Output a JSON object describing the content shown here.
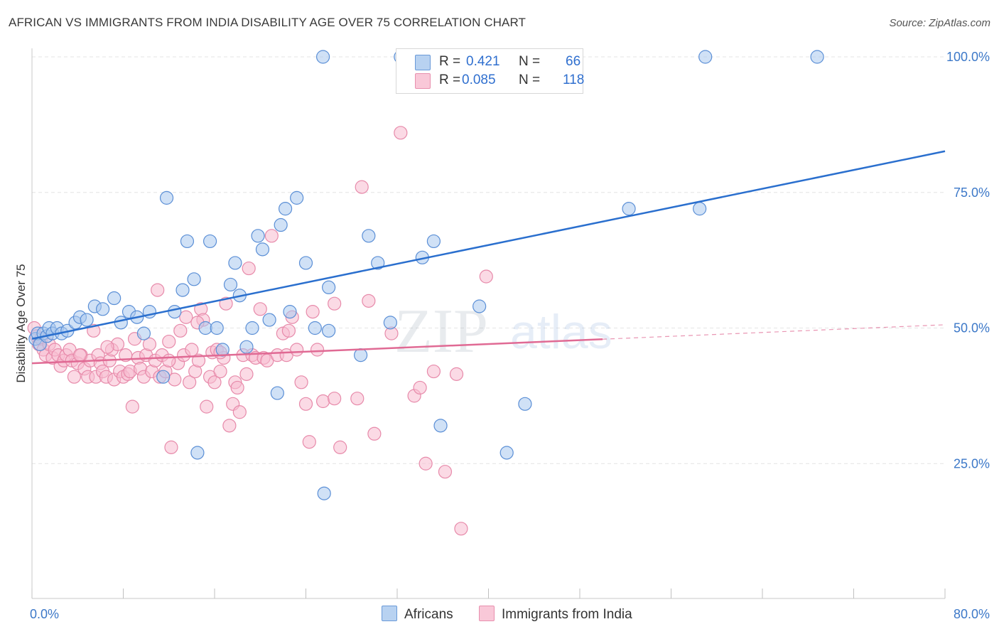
{
  "title": "AFRICAN VS IMMIGRANTS FROM INDIA DISABILITY AGE OVER 75 CORRELATION CHART",
  "source": "Source: ZipAtlas.com",
  "watermark": {
    "part1": "ZIP",
    "part2": "atlas"
  },
  "legend": {
    "rows": [
      {
        "r_label": "R =",
        "r_value": "0.421",
        "n_label": "N =",
        "n_value": "66"
      },
      {
        "r_label": "R =",
        "r_value": "0.085",
        "n_label": "N =",
        "n_value": "118"
      }
    ]
  },
  "bottom_legend": [
    "Africans",
    "Immigrants from India"
  ],
  "colors": {
    "africans_fill": "#a9c8ee",
    "africans_stroke": "#5b8fd6",
    "africans_line": "#2a6fce",
    "india_fill": "#f7bcd0",
    "india_stroke": "#e78aaa",
    "india_line": "#e06a94",
    "axis_text": "#3c78c8",
    "grid": "#e4e4e4"
  },
  "chart_data": {
    "type": "scatter",
    "title": "AFRICAN VS IMMIGRANTS FROM INDIA DISABILITY AGE OVER 75 CORRELATION CHART",
    "xlabel": "",
    "ylabel": "Disability Age Over 75",
    "xlim": [
      0,
      80
    ],
    "ylim": [
      0,
      102
    ],
    "x_tick_labels": [
      "0.0%",
      "80.0%"
    ],
    "y_ticks": [
      25,
      50,
      75,
      100
    ],
    "y_tick_labels": [
      "25.0%",
      "50.0%",
      "75.0%",
      "100.0%"
    ],
    "grid": true,
    "legend_position": "top-center",
    "series": [
      {
        "name": "Africans",
        "R": 0.421,
        "N": 66,
        "trend": {
          "x": [
            0,
            80
          ],
          "y": [
            48.0,
            82.6
          ],
          "dashed_from": null
        },
        "points": [
          [
            0.3,
            48
          ],
          [
            0.5,
            49
          ],
          [
            0.7,
            47
          ],
          [
            1.0,
            49
          ],
          [
            1.3,
            48.5
          ],
          [
            1.5,
            50
          ],
          [
            1.8,
            49
          ],
          [
            2.2,
            50
          ],
          [
            2.6,
            49
          ],
          [
            3.1,
            49.5
          ],
          [
            3.8,
            51
          ],
          [
            4.2,
            52
          ],
          [
            4.8,
            51.5
          ],
          [
            5.5,
            54
          ],
          [
            6.2,
            53.5
          ],
          [
            7.2,
            55.5
          ],
          [
            7.8,
            51
          ],
          [
            8.5,
            53
          ],
          [
            9.2,
            52
          ],
          [
            9.8,
            49
          ],
          [
            10.3,
            53
          ],
          [
            11.5,
            41
          ],
          [
            11.8,
            74
          ],
          [
            12.5,
            53
          ],
          [
            13.2,
            57
          ],
          [
            13.6,
            66
          ],
          [
            14.2,
            59
          ],
          [
            14.5,
            27
          ],
          [
            15.2,
            50
          ],
          [
            15.6,
            66
          ],
          [
            16.2,
            50
          ],
          [
            16.7,
            46
          ],
          [
            17.4,
            58
          ],
          [
            17.8,
            62
          ],
          [
            18.2,
            56
          ],
          [
            18.8,
            46.5
          ],
          [
            19.3,
            50
          ],
          [
            19.8,
            67
          ],
          [
            20.2,
            64.5
          ],
          [
            20.8,
            51.5
          ],
          [
            21.5,
            38
          ],
          [
            21.8,
            69
          ],
          [
            22.2,
            72
          ],
          [
            22.6,
            53
          ],
          [
            23.2,
            74
          ],
          [
            24.0,
            62
          ],
          [
            24.8,
            50
          ],
          [
            25.5,
            100
          ],
          [
            25.6,
            19.5
          ],
          [
            26.0,
            57.5
          ],
          [
            26.0,
            49.5
          ],
          [
            28.8,
            45
          ],
          [
            29.5,
            67
          ],
          [
            30.3,
            62
          ],
          [
            31.4,
            51
          ],
          [
            32.3,
            100
          ],
          [
            34.2,
            63
          ],
          [
            35.2,
            66
          ],
          [
            35.8,
            32
          ],
          [
            39.2,
            54
          ],
          [
            41.6,
            27
          ],
          [
            43.2,
            36
          ],
          [
            52.3,
            72
          ],
          [
            58.5,
            72
          ],
          [
            59.0,
            100
          ],
          [
            68.8,
            100
          ]
        ]
      },
      {
        "name": "Immigrants from India",
        "R": 0.085,
        "N": 118,
        "trend": {
          "x": [
            0,
            80
          ],
          "y": [
            43.5,
            50.6
          ],
          "dashed_from": 50
        },
        "points": [
          [
            0.2,
            50
          ],
          [
            0.4,
            48.5
          ],
          [
            0.6,
            47
          ],
          [
            0.8,
            48
          ],
          [
            1.0,
            46
          ],
          [
            1.2,
            45
          ],
          [
            1.5,
            47
          ],
          [
            1.8,
            44.5
          ],
          [
            2.0,
            46
          ],
          [
            2.3,
            45
          ],
          [
            2.5,
            43
          ],
          [
            2.8,
            44
          ],
          [
            3.0,
            45
          ],
          [
            3.3,
            46
          ],
          [
            3.5,
            44
          ],
          [
            3.7,
            41
          ],
          [
            4.0,
            43.5
          ],
          [
            4.3,
            45
          ],
          [
            4.6,
            42.5
          ],
          [
            4.9,
            41
          ],
          [
            5.1,
            44
          ],
          [
            5.4,
            49.5
          ],
          [
            5.6,
            41
          ],
          [
            5.8,
            45
          ],
          [
            6.0,
            43.5
          ],
          [
            6.2,
            42
          ],
          [
            6.5,
            41
          ],
          [
            6.8,
            44
          ],
          [
            7.0,
            46
          ],
          [
            7.2,
            40.5
          ],
          [
            7.5,
            47
          ],
          [
            7.7,
            42
          ],
          [
            8.0,
            41
          ],
          [
            8.2,
            45
          ],
          [
            8.4,
            41.5
          ],
          [
            8.6,
            42
          ],
          [
            8.8,
            35.5
          ],
          [
            9.0,
            48
          ],
          [
            9.3,
            44.5
          ],
          [
            9.5,
            42.5
          ],
          [
            9.8,
            41
          ],
          [
            10.0,
            45
          ],
          [
            10.3,
            47
          ],
          [
            10.5,
            42
          ],
          [
            10.8,
            44
          ],
          [
            11.0,
            57
          ],
          [
            11.2,
            41
          ],
          [
            11.4,
            45
          ],
          [
            11.7,
            42
          ],
          [
            12.0,
            47.5
          ],
          [
            12.2,
            28
          ],
          [
            12.5,
            40.5
          ],
          [
            12.8,
            43.5
          ],
          [
            13.0,
            49.5
          ],
          [
            13.3,
            45
          ],
          [
            13.5,
            52
          ],
          [
            13.8,
            40
          ],
          [
            14.0,
            46
          ],
          [
            14.3,
            42
          ],
          [
            14.6,
            44
          ],
          [
            14.8,
            53.5
          ],
          [
            15.0,
            51.5
          ],
          [
            15.3,
            35.5
          ],
          [
            15.6,
            41
          ],
          [
            15.8,
            45.5
          ],
          [
            16.0,
            40
          ],
          [
            16.2,
            46
          ],
          [
            16.5,
            42
          ],
          [
            16.8,
            44.5
          ],
          [
            17.0,
            54.5
          ],
          [
            17.3,
            32
          ],
          [
            17.6,
            36
          ],
          [
            17.8,
            40
          ],
          [
            18.0,
            39
          ],
          [
            18.2,
            34.5
          ],
          [
            18.5,
            45
          ],
          [
            18.8,
            41.5
          ],
          [
            19.0,
            61
          ],
          [
            19.3,
            45
          ],
          [
            19.6,
            44.5
          ],
          [
            20.0,
            53.5
          ],
          [
            20.3,
            44.5
          ],
          [
            20.6,
            44
          ],
          [
            21.0,
            67
          ],
          [
            21.5,
            45
          ],
          [
            22.0,
            49
          ],
          [
            22.3,
            45
          ],
          [
            22.8,
            52
          ],
          [
            23.2,
            46
          ],
          [
            23.6,
            40
          ],
          [
            24.0,
            36
          ],
          [
            24.3,
            29
          ],
          [
            24.6,
            53
          ],
          [
            25.0,
            46
          ],
          [
            25.5,
            36.5
          ],
          [
            26.5,
            37
          ],
          [
            27.0,
            28
          ],
          [
            28.5,
            37
          ],
          [
            28.9,
            76
          ],
          [
            29.5,
            55
          ],
          [
            30.0,
            30.5
          ],
          [
            32.3,
            86
          ],
          [
            33.5,
            37.5
          ],
          [
            34.0,
            39
          ],
          [
            34.5,
            25
          ],
          [
            35.2,
            42
          ],
          [
            36.2,
            23.5
          ],
          [
            37.2,
            41.5
          ],
          [
            37.6,
            13
          ],
          [
            39.8,
            59.5
          ],
          [
            6.6,
            46.5
          ],
          [
            12.0,
            44
          ],
          [
            16.5,
            45.5
          ],
          [
            26.5,
            54.5
          ],
          [
            31.5,
            49
          ],
          [
            22.5,
            49.5
          ],
          [
            4.2,
            45
          ],
          [
            14.5,
            51
          ]
        ]
      }
    ]
  }
}
